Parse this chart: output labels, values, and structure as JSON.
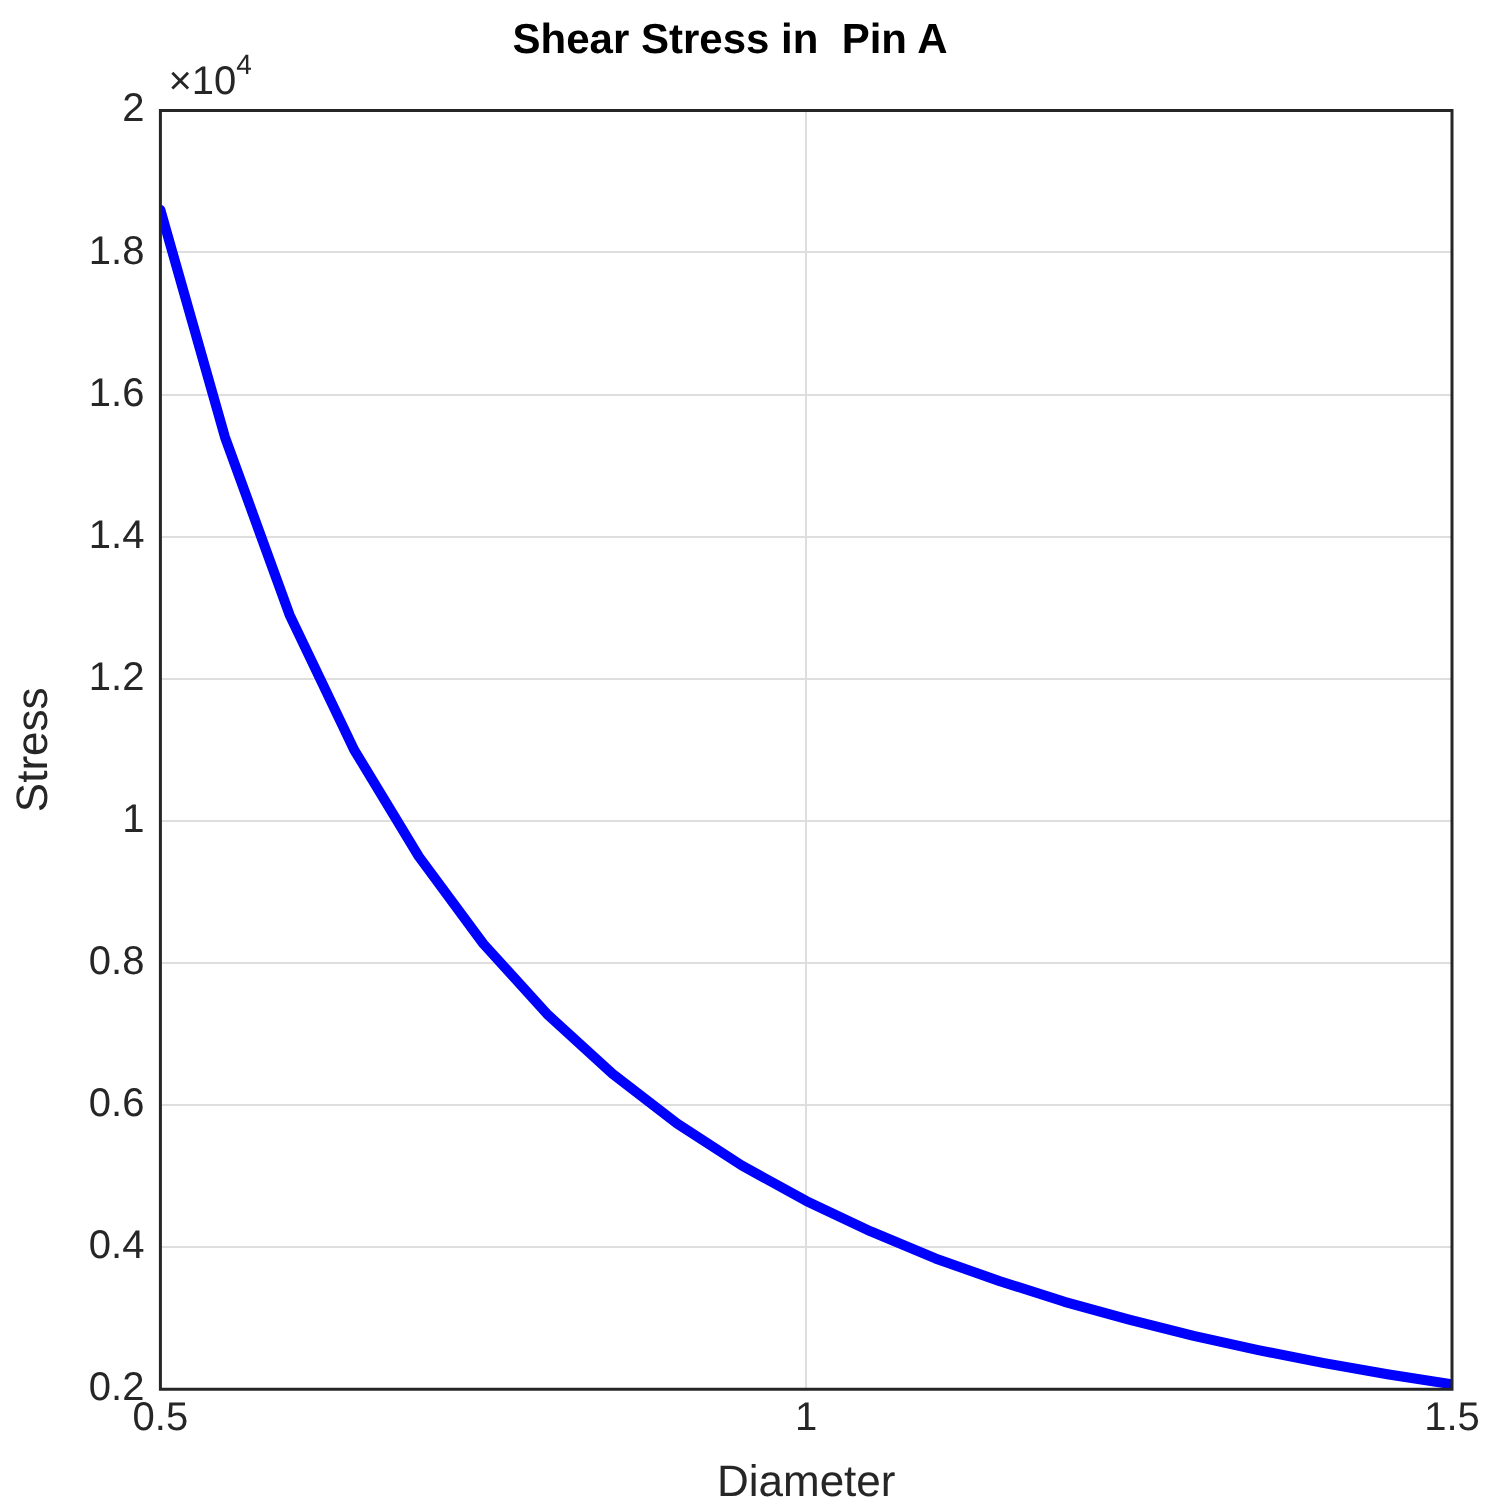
{
  "chart_data": {
    "type": "line",
    "title": "Shear Stress in  Pin A",
    "xlabel": "Diameter",
    "ylabel": "Stress",
    "x": [
      0.5,
      0.55,
      0.6,
      0.65,
      0.7,
      0.75,
      0.8,
      0.85,
      0.9,
      0.95,
      1.0,
      1.05,
      1.1,
      1.15,
      1.2,
      1.25,
      1.3,
      1.35,
      1.4,
      1.45,
      1.5
    ],
    "series": [
      {
        "color": "#0000ff",
        "values": [
          1.86,
          1.54,
          1.29,
          1.1,
          0.95,
          0.827,
          0.727,
          0.644,
          0.574,
          0.515,
          0.465,
          0.422,
          0.384,
          0.352,
          0.323,
          0.298,
          0.275,
          0.255,
          0.237,
          0.221,
          0.207
        ]
      }
    ],
    "xlim": [
      0.5,
      1.5
    ],
    "xticks": [
      0.5,
      1,
      1.5
    ],
    "ylim": [
      0.2,
      2
    ],
    "yticks": [
      0.2,
      0.4,
      0.6,
      0.8,
      1,
      1.2,
      1.4,
      1.6,
      1.8,
      2
    ],
    "annotations": [
      "×10$^{4}$"
    ],
    "grid": true,
    "legend": false,
    "marker": "none",
    "line_style": "solid"
  }
}
